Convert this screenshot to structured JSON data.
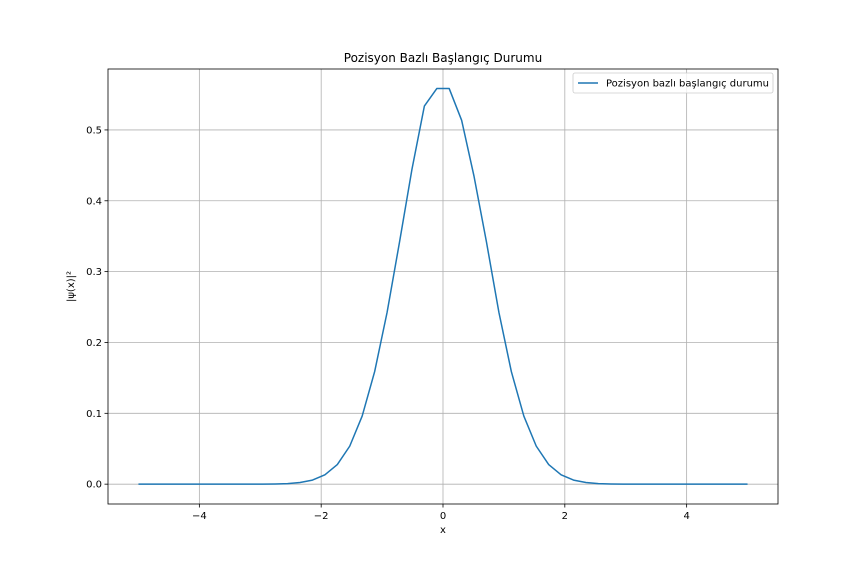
{
  "chart_data": {
    "type": "line",
    "title": "Pozisyon Bazlı Başlangıç Durumu",
    "xlabel": "x",
    "ylabel": "|ψ(x)|²",
    "xlim": [
      -5.5,
      5.5
    ],
    "ylim": [
      -0.028,
      0.586
    ],
    "xticks": [
      -4,
      -2,
      0,
      2,
      4
    ],
    "xtick_labels": [
      "−4",
      "−2",
      "0",
      "2",
      "4"
    ],
    "yticks": [
      0.0,
      0.1,
      0.2,
      0.3,
      0.4,
      0.5
    ],
    "ytick_labels": [
      "0.0",
      "0.1",
      "0.2",
      "0.3",
      "0.4",
      "0.5"
    ],
    "grid": true,
    "legend_position": "top-right",
    "series": [
      {
        "name": "Pozisyon bazlı başlangıç durumu",
        "color": "#1f77b4",
        "x": [
          -5.0,
          -4.796,
          -4.592,
          -4.388,
          -4.184,
          -3.98,
          -3.776,
          -3.571,
          -3.367,
          -3.163,
          -2.959,
          -2.755,
          -2.551,
          -2.347,
          -2.143,
          -1.939,
          -1.735,
          -1.531,
          -1.327,
          -1.122,
          -0.918,
          -0.714,
          -0.51,
          -0.306,
          -0.102,
          0.102,
          0.306,
          0.51,
          0.714,
          0.918,
          1.122,
          1.327,
          1.531,
          1.735,
          1.939,
          2.143,
          2.347,
          2.551,
          2.755,
          2.959,
          3.163,
          3.367,
          3.571,
          3.776,
          3.98,
          4.184,
          4.388,
          4.592,
          4.796,
          5.0
        ],
        "y": [
          0.0,
          0.0,
          0.0,
          0.0,
          0.0,
          0.0,
          0.0,
          0.0,
          0.0,
          0.0,
          0.0001,
          0.0003,
          0.0008,
          0.0023,
          0.0057,
          0.0132,
          0.0277,
          0.0537,
          0.0961,
          0.1589,
          0.2425,
          0.3416,
          0.4443,
          0.5336,
          0.5584,
          0.5584,
          0.5136,
          0.4343,
          0.3416,
          0.2425,
          0.1589,
          0.0961,
          0.0537,
          0.0277,
          0.0132,
          0.0057,
          0.0023,
          0.0008,
          0.0003,
          0.0001,
          0.0,
          0.0,
          0.0,
          0.0,
          0.0,
          0.0,
          0.0,
          0.0,
          0.0,
          0.0
        ]
      }
    ]
  }
}
